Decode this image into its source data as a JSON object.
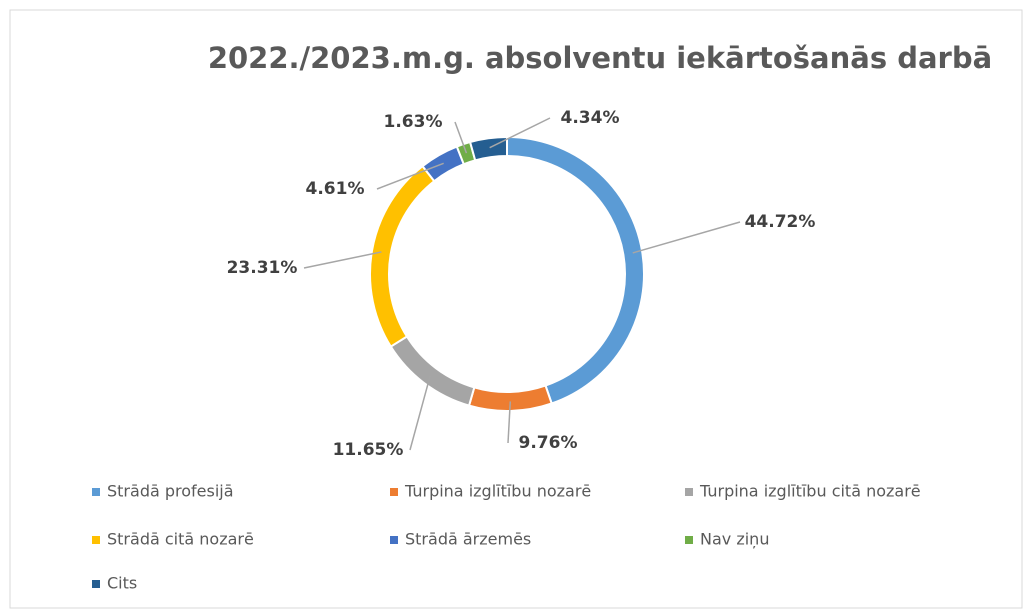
{
  "chart_data": {
    "type": "donut",
    "title": "2022./2023.m.g. absolventu iekārtošanās darbā",
    "categories": [
      "Strādā profesijā",
      "Turpina izglītību nozarē",
      "Turpina izglītību citā nozarē",
      "Strādā citā nozarē",
      "Strādā ārzemēs",
      "Nav ziņu",
      "Cits"
    ],
    "values": [
      44.72,
      9.76,
      11.65,
      23.31,
      4.61,
      1.63,
      4.34
    ],
    "value_labels": [
      "44.72%",
      "9.76%",
      "11.65%",
      "23.31%",
      "4.61%",
      "1.63%",
      "4.34%"
    ],
    "colors": [
      "#5b9bd5",
      "#ed7d31",
      "#a5a5a5",
      "#ffc000",
      "#4472c4",
      "#70ad47",
      "#255e91"
    ],
    "legend": "bottom"
  }
}
